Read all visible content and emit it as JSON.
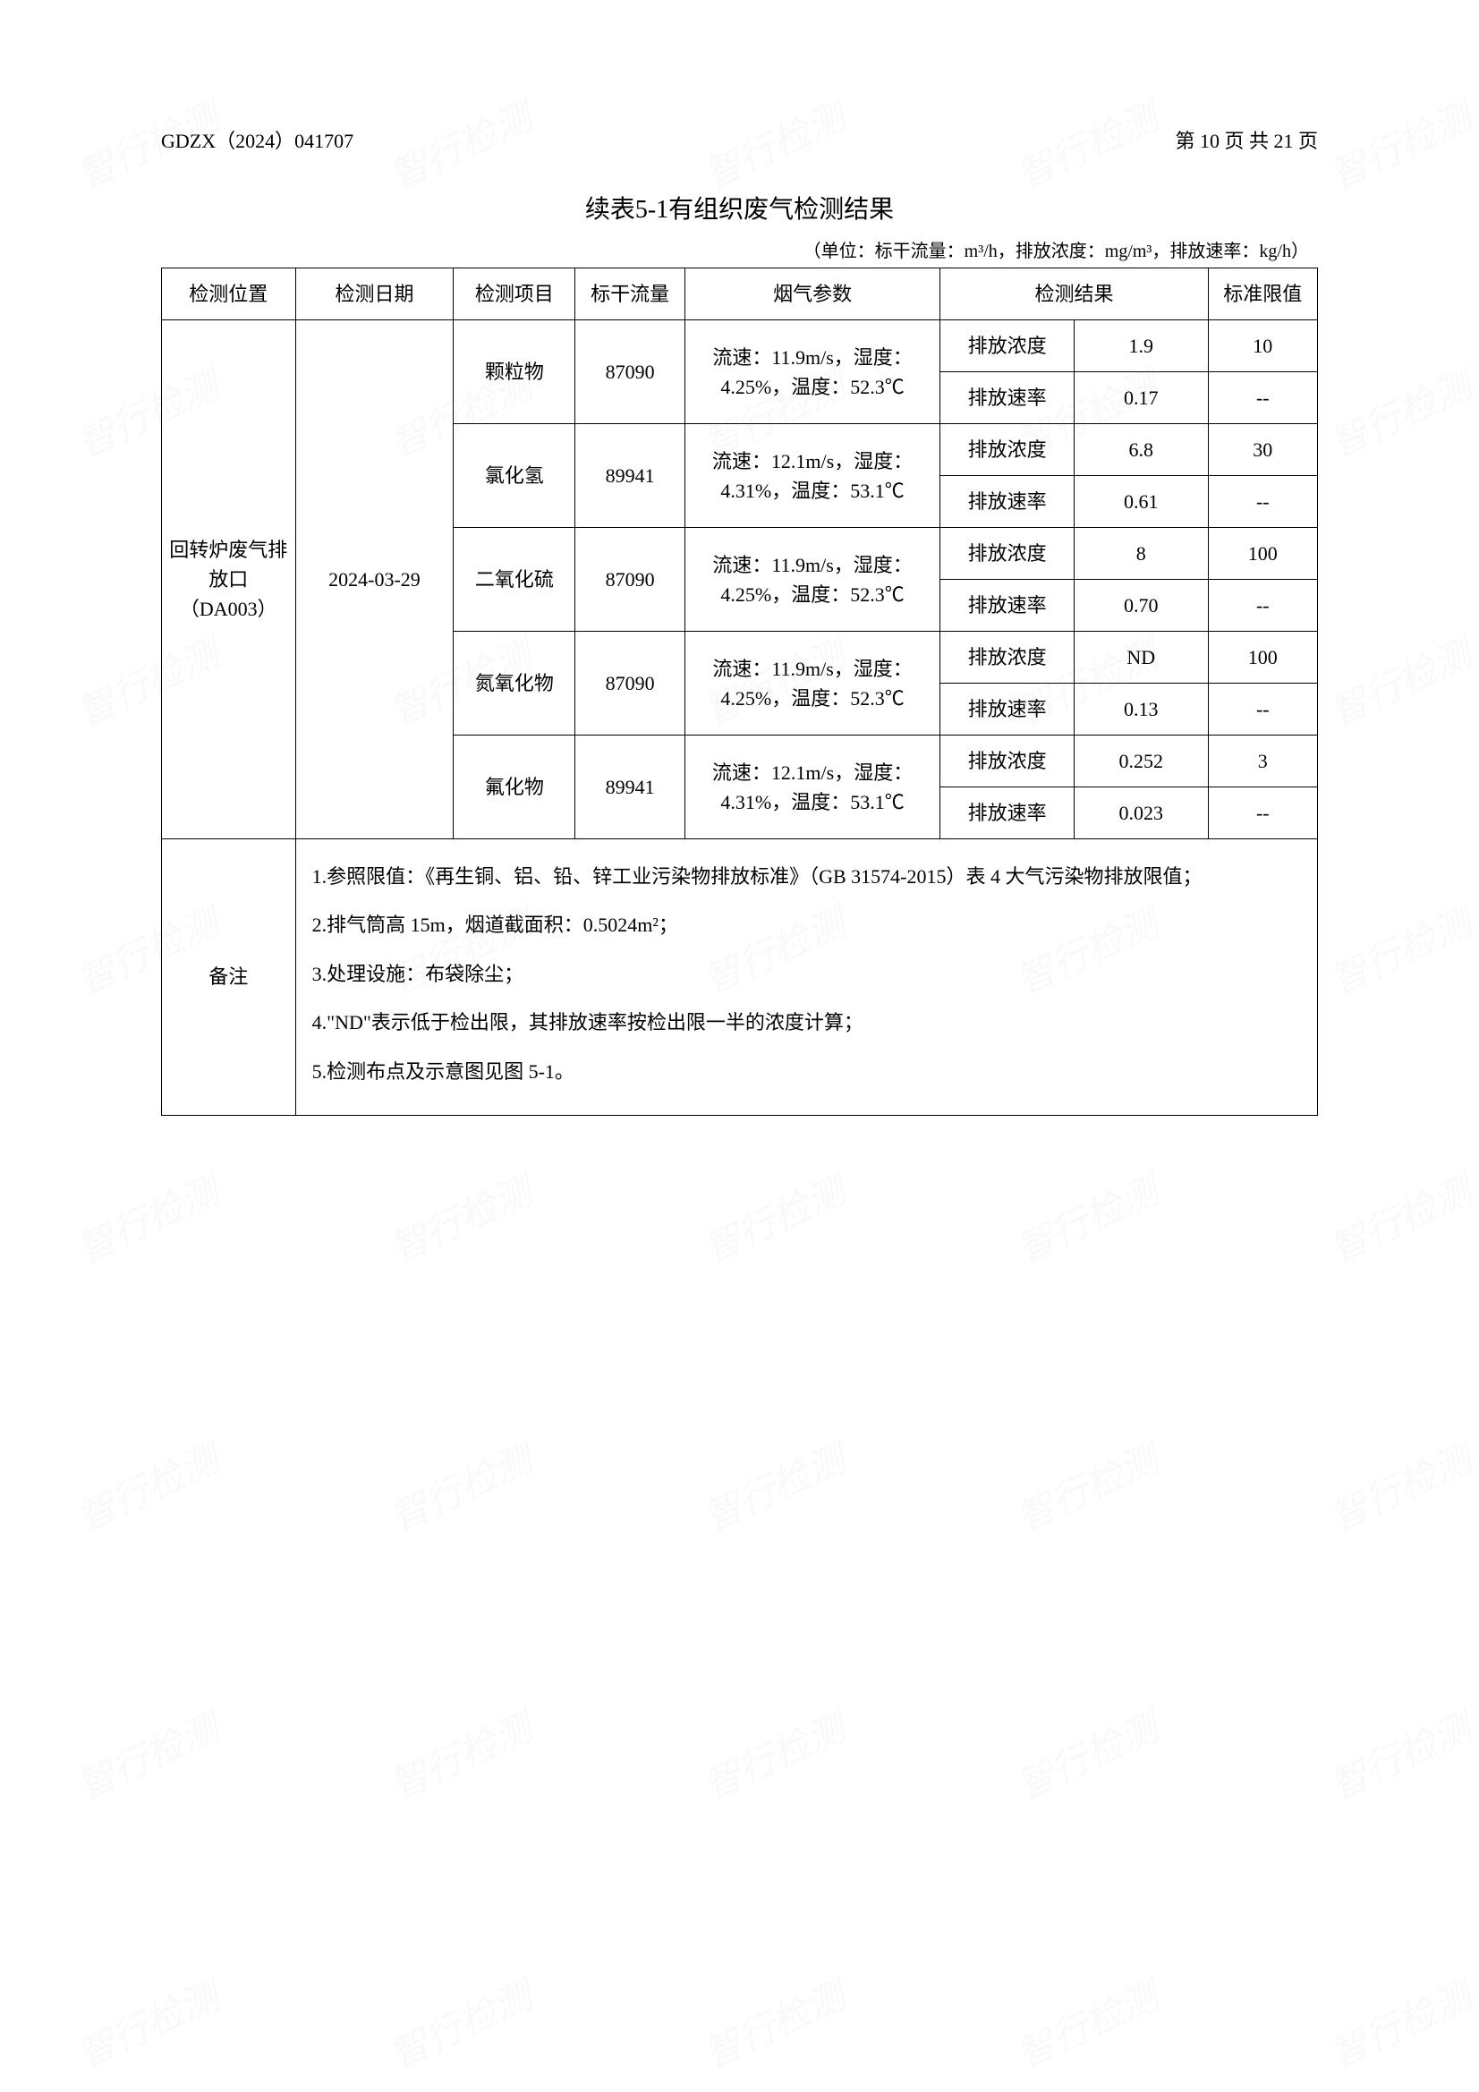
{
  "header": {
    "doc_number": "GDZX（2024）041707",
    "page_info": "第 10 页 共 21 页"
  },
  "title": "续表5-1有组织废气检测结果",
  "units_label": "（单位：标干流量：m³/h，排放浓度：mg/m³，排放速率：kg/h）",
  "columns": {
    "position": "检测位置",
    "date": "检测日期",
    "item": "检测项目",
    "flow": "标干流量",
    "params": "烟气参数",
    "results": "检测结果",
    "limit": "标准限值"
  },
  "location": "回转炉废气排放口（DA003）",
  "test_date": "2024-03-29",
  "items": [
    {
      "name": "颗粒物",
      "flow": "87090",
      "params": "流速：11.9m/s，湿度：4.25%，温度：52.3℃",
      "rows": [
        {
          "label": "排放浓度",
          "value": "1.9",
          "limit": "10"
        },
        {
          "label": "排放速率",
          "value": "0.17",
          "limit": "--"
        }
      ]
    },
    {
      "name": "氯化氢",
      "flow": "89941",
      "params": "流速：12.1m/s，湿度：4.31%，温度：53.1℃",
      "rows": [
        {
          "label": "排放浓度",
          "value": "6.8",
          "limit": "30"
        },
        {
          "label": "排放速率",
          "value": "0.61",
          "limit": "--"
        }
      ]
    },
    {
      "name": "二氧化硫",
      "flow": "87090",
      "params": "流速：11.9m/s，湿度：4.25%，温度：52.3℃",
      "rows": [
        {
          "label": "排放浓度",
          "value": "8",
          "limit": "100"
        },
        {
          "label": "排放速率",
          "value": "0.70",
          "limit": "--"
        }
      ]
    },
    {
      "name": "氮氧化物",
      "flow": "87090",
      "params": "流速：11.9m/s，湿度：4.25%，温度：52.3℃",
      "rows": [
        {
          "label": "排放浓度",
          "value": "ND",
          "limit": "100"
        },
        {
          "label": "排放速率",
          "value": "0.13",
          "limit": "--"
        }
      ]
    },
    {
      "name": "氟化物",
      "flow": "89941",
      "params": "流速：12.1m/s，湿度：4.31%，温度：53.1℃",
      "rows": [
        {
          "label": "排放浓度",
          "value": "0.252",
          "limit": "3"
        },
        {
          "label": "排放速率",
          "value": "0.023",
          "limit": "--"
        }
      ]
    }
  ],
  "notes_label": "备注",
  "notes": [
    "1.参照限值：《再生铜、铝、铅、锌工业污染物排放标准》（GB 31574-2015）表 4 大气污染物排放限值；",
    "2.排气筒高 15m，烟道截面积：0.5024m²；",
    "3.处理设施：布袋除尘；",
    "4.\"ND\"表示低于检出限，其排放速率按检出限一半的浓度计算；",
    "5.检测布点及示意图见图 5-1。"
  ],
  "watermark_text": "智行检测"
}
